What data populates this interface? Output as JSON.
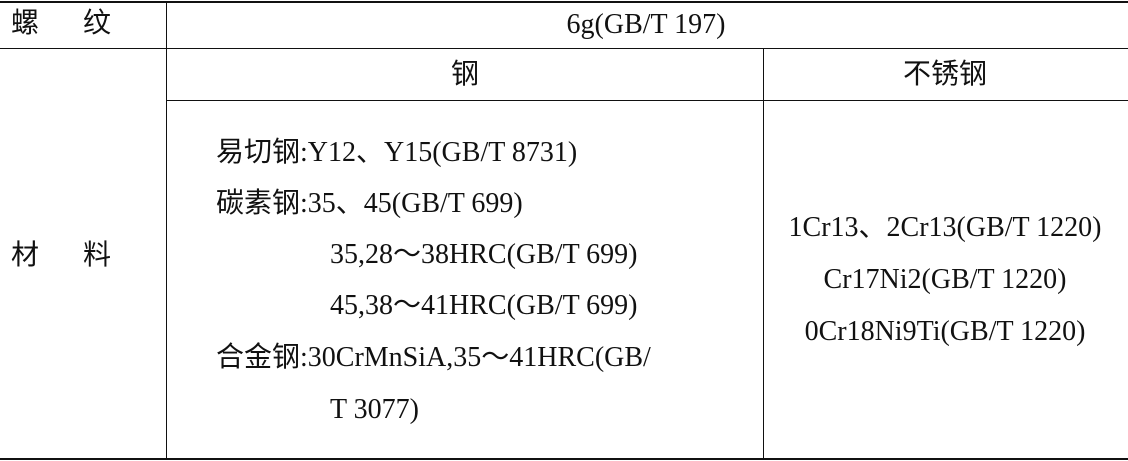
{
  "table": {
    "rows": [
      [
        "螺纹",
        "6g(GB/T 197)"
      ],
      [
        "材料",
        "钢",
        "不锈钢"
      ]
    ],
    "steel_lines": [
      "易切钢:Y12、Y15(GB/T 8731)",
      "碳素钢:35、45(GB/T 699)",
      "35,28～38HRC(GB/T 699)",
      "45,38～41HRC(GB/T 699)",
      "合金钢:30CrMnSiA,35～41HRC(GB/",
      "T 3077)"
    ],
    "stainless_lines": [
      "1Cr13、2Cr13(GB/T 1220)",
      "Cr17Ni2(GB/T 1220)",
      "0Cr18Ni9Ti(GB/T 1220)"
    ]
  }
}
